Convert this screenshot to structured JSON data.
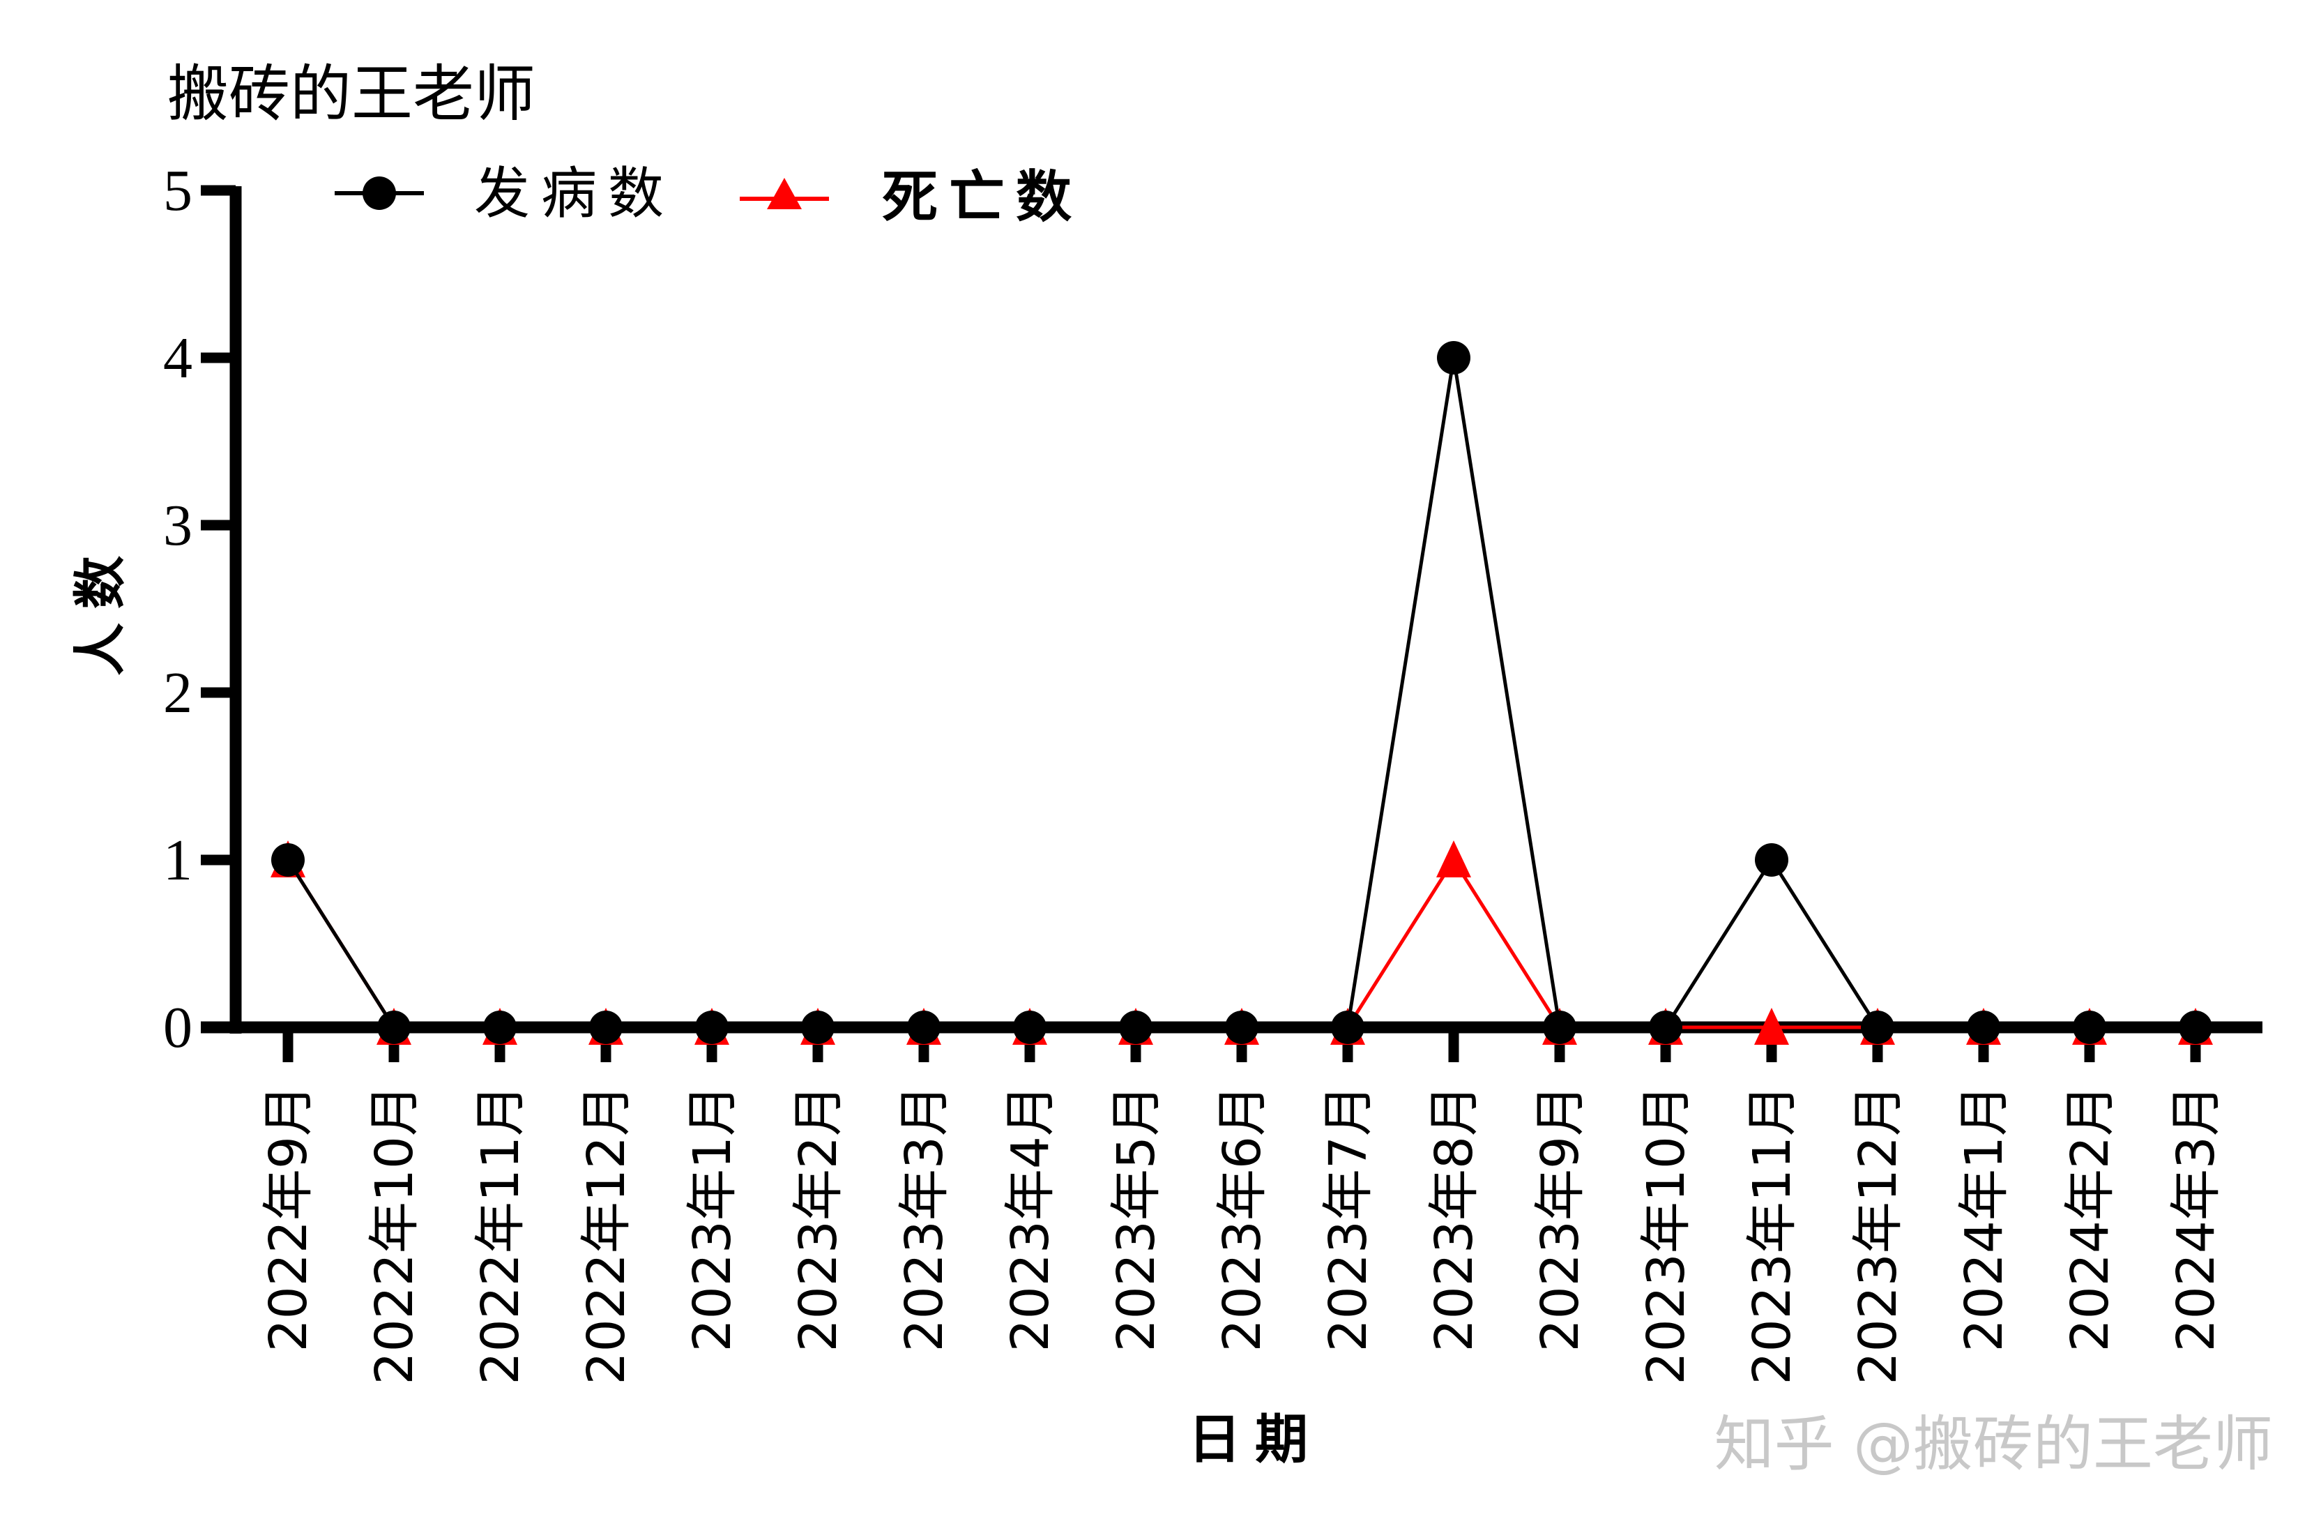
{
  "chart_data": {
    "type": "line",
    "title": "搬砖的王老师",
    "xlabel": "日期",
    "ylabel": "人数",
    "ylim": [
      0,
      5
    ],
    "yticks": [
      "0",
      "1",
      "2",
      "3",
      "4",
      "5"
    ],
    "grid": false,
    "legend_position": "top-left",
    "categories": [
      "2022年9月",
      "2022年10月",
      "2022年11月",
      "2022年12月",
      "2023年1月",
      "2023年2月",
      "2023年3月",
      "2023年4月",
      "2023年5月",
      "2023年6月",
      "2023年7月",
      "2023年8月",
      "2023年9月",
      "2023年10月",
      "2023年11月",
      "2023年12月",
      "2024年1月",
      "2024年2月",
      "2024年3月"
    ],
    "series": [
      {
        "name": "发病数",
        "color": "#000000",
        "marker": "circle",
        "values": [
          1,
          0,
          0,
          0,
          0,
          0,
          0,
          0,
          0,
          0,
          0,
          4,
          0,
          0,
          1,
          0,
          0,
          0,
          0
        ]
      },
      {
        "name": "死亡数",
        "color": "#ff0000",
        "marker": "triangle",
        "values": [
          1,
          0,
          0,
          0,
          0,
          0,
          0,
          0,
          0,
          0,
          0,
          1,
          0,
          0,
          0,
          0,
          0,
          0,
          0
        ]
      }
    ]
  },
  "watermark": "知乎 @搬砖的王老师"
}
